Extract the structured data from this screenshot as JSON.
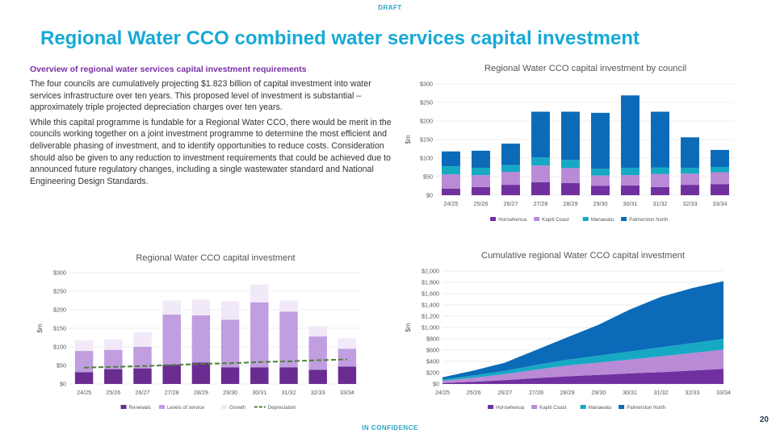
{
  "header": {
    "draft_label": "DRAFT",
    "title": "Regional Water CCO combined water services capital investment"
  },
  "footer": {
    "confidence_label": "IN CONFIDENCE",
    "page_number": "20"
  },
  "overview": {
    "heading": "Overview of regional water services capital investment requirements",
    "paragraph1": "The four councils are cumulatively projecting $1.823 billion of capital investment into water services infrastructure over ten years. This proposed level of investment is substantial –approximately triple projected depreciation charges over ten years.",
    "paragraph2": "While this capital programme is fundable for a Regional Water CCO, there would be merit in the councils working together on a joint investment programme to determine the most efficient and deliverable phasing of investment, and to identify opportunities to reduce costs. Consideration should also be given to any reduction to investment requirements that could be achieved due to announced future regulatory changes, including a single wastewater standard and National Engineering Design Standards."
  },
  "chart_data": [
    {
      "type": "bar",
      "stacked": true,
      "title": "Regional Water CCO capital investment by council",
      "ylabel": "$m",
      "ylim": [
        0,
        300
      ],
      "yticks": [
        "$0",
        "$50",
        "$100",
        "$150",
        "$200",
        "$250",
        "$300"
      ],
      "categories": [
        "24/25",
        "25/26",
        "26/27",
        "27/28",
        "28/29",
        "29/30",
        "30/31",
        "31/32",
        "32/33",
        "33/34"
      ],
      "series": [
        {
          "name": "Horowhenua",
          "color": "#7030a0",
          "values": [
            18,
            22,
            28,
            35,
            33,
            25,
            26,
            22,
            28,
            30
          ]
        },
        {
          "name": "Kapiti Coast",
          "color": "#b98ad6",
          "values": [
            38,
            32,
            35,
            45,
            40,
            28,
            28,
            35,
            30,
            32
          ]
        },
        {
          "name": "Manawatu",
          "color": "#17a8c4",
          "values": [
            22,
            20,
            18,
            22,
            22,
            18,
            20,
            18,
            16,
            14
          ]
        },
        {
          "name": "Palmerston North",
          "color": "#0b6bb8",
          "values": [
            40,
            46,
            58,
            123,
            130,
            151,
            195,
            150,
            82,
            46
          ]
        }
      ],
      "legend_position": "bottom",
      "grid": true
    },
    {
      "type": "bar",
      "stacked": true,
      "title": "Regional Water CCO capital investment",
      "ylabel": "$m",
      "ylim": [
        0,
        300
      ],
      "yticks": [
        "$0",
        "$50",
        "$100",
        "$150",
        "$200",
        "$250",
        "$300"
      ],
      "categories": [
        "24/25",
        "25/26",
        "26/27",
        "27/28",
        "28/29",
        "29/30",
        "30/31",
        "31/32",
        "32/33",
        "33/34"
      ],
      "series": [
        {
          "name": "Renewals",
          "color": "#6a2c91",
          "values": [
            32,
            40,
            42,
            52,
            58,
            45,
            45,
            45,
            38,
            47
          ]
        },
        {
          "name": "Levels of service",
          "color": "#c09ee0",
          "values": [
            57,
            52,
            58,
            135,
            127,
            128,
            175,
            150,
            90,
            48
          ]
        },
        {
          "name": "Growth",
          "color": "#f1e8f8",
          "values": [
            28,
            28,
            40,
            38,
            42,
            50,
            48,
            30,
            28,
            28
          ]
        }
      ],
      "lines": [
        {
          "name": "Depreciation",
          "color": "#4f7f3a",
          "dashed": true,
          "values": [
            44,
            46,
            48,
            51,
            54,
            56,
            59,
            61,
            64,
            66
          ]
        }
      ],
      "legend_position": "bottom",
      "grid": true
    },
    {
      "type": "area",
      "stacked": true,
      "title": "Cumulative regional Water CCO capital investment",
      "ylabel": "$m",
      "ylim": [
        0,
        2000
      ],
      "yticks": [
        "$0",
        "$200",
        "$400",
        "$600",
        "$800",
        "$1,000",
        "$1,200",
        "$1,400",
        "$1,600",
        "$1,800",
        "$2,000"
      ],
      "categories": [
        "24/25",
        "25/26",
        "26/27",
        "27/28",
        "28/29",
        "29/30",
        "30/31",
        "31/32",
        "32/33",
        "33/34"
      ],
      "series": [
        {
          "name": "Horowhenua",
          "color": "#7030a0",
          "values": [
            18,
            40,
            68,
            103,
            136,
            161,
            187,
            209,
            237,
            267
          ]
        },
        {
          "name": "Kapiti Coast",
          "color": "#b98ad6",
          "values": [
            38,
            70,
            105,
            150,
            190,
            218,
            246,
            281,
            311,
            343
          ]
        },
        {
          "name": "Manawatu",
          "color": "#17a8c4",
          "values": [
            22,
            42,
            60,
            82,
            104,
            122,
            142,
            160,
            176,
            190
          ]
        },
        {
          "name": "Palmerston North",
          "color": "#0b6bb8",
          "values": [
            40,
            86,
            144,
            267,
            397,
            548,
            743,
            893,
            975,
            1021
          ]
        }
      ],
      "legend_position": "bottom",
      "grid": true
    }
  ]
}
